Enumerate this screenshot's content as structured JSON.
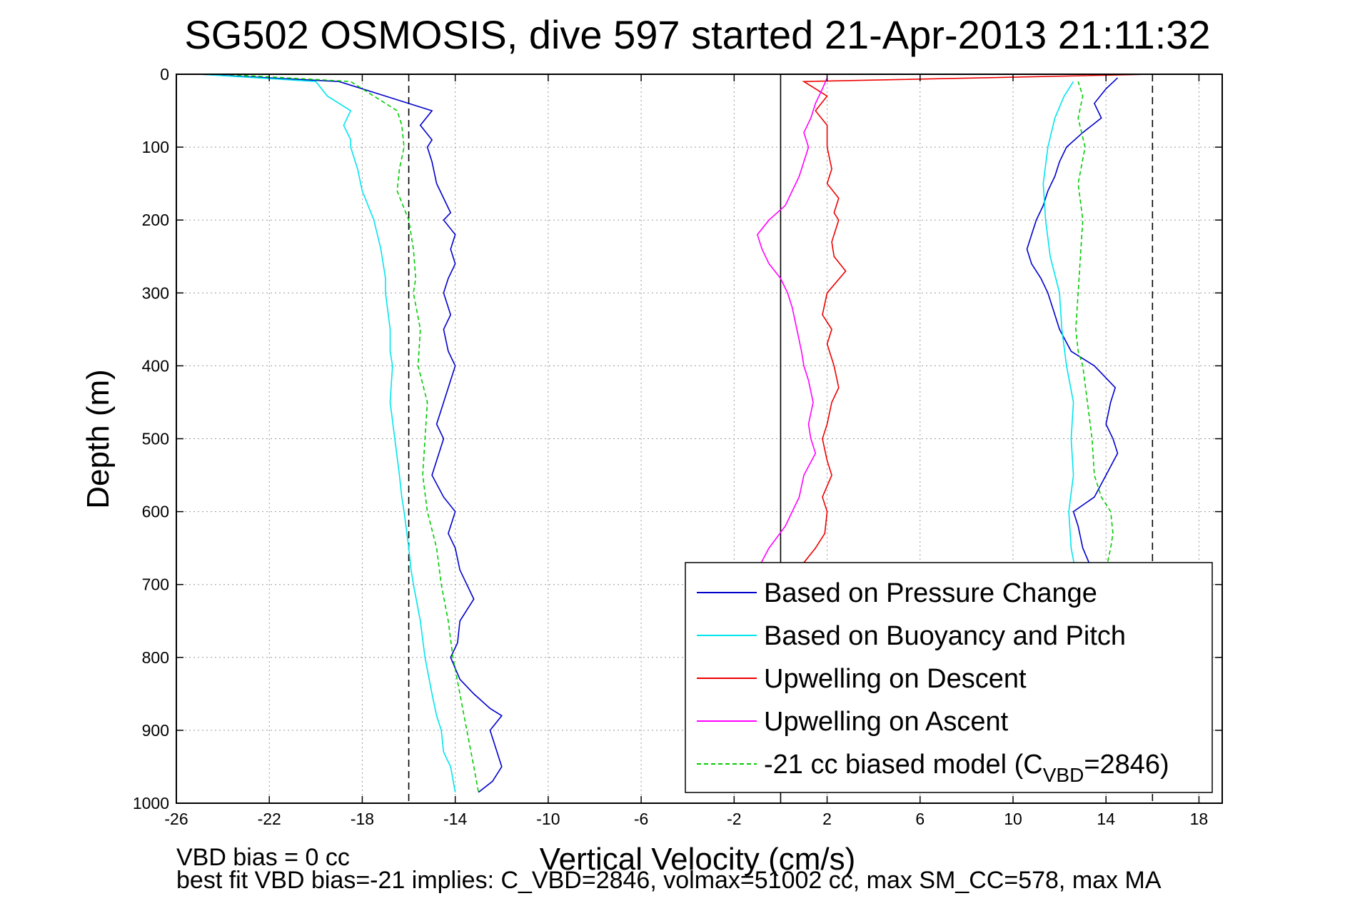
{
  "chart_data": {
    "type": "line",
    "title": "SG502 OSMOSIS, dive 597 started 21-Apr-2013 21:11:32",
    "xlabel": "Vertical Velocity (cm/s)",
    "ylabel": "Depth (m)",
    "xlim": [
      -26,
      19
    ],
    "ylim": [
      1000,
      0
    ],
    "y_reversed": true,
    "x_ticks": [
      -26,
      -22,
      -18,
      -14,
      -10,
      -6,
      -2,
      2,
      6,
      10,
      14,
      18
    ],
    "y_ticks": [
      0,
      100,
      200,
      300,
      400,
      500,
      600,
      700,
      800,
      900,
      1000
    ],
    "grid": true,
    "legend_position": "bottom-right",
    "reference_lines": [
      {
        "x": -16,
        "style": "dashed",
        "color": "#000000"
      },
      {
        "x": 16,
        "style": "dashed",
        "color": "#000000"
      },
      {
        "x": 0,
        "style": "solid",
        "color": "#000000"
      }
    ],
    "series": [
      {
        "name": "Based on Pressure Change",
        "color": "#0000cc",
        "style": "solid",
        "segments": [
          {
            "label": "descent",
            "depth": [
              0,
              10,
              30,
              50,
              70,
              90,
              100,
              120,
              150,
              170,
              190,
              200,
              220,
              240,
              260,
              280,
              300,
              330,
              350,
              380,
              400,
              420,
              450,
              480,
              500,
              530,
              550,
              580,
              600,
              630,
              650,
              680,
              700,
              720,
              750,
              780,
              800,
              830,
              850,
              870,
              880,
              900,
              920,
              950,
              970,
              985
            ],
            "value": [
              -25,
              -19,
              -17,
              -15,
              -15.5,
              -15,
              -15.2,
              -15,
              -14.8,
              -14.5,
              -14.2,
              -14.5,
              -14,
              -14.2,
              -14,
              -14.3,
              -14.5,
              -14.2,
              -14.5,
              -14.3,
              -14,
              -14.2,
              -14.5,
              -14.8,
              -14.5,
              -14.8,
              -15,
              -14.5,
              -14,
              -14.3,
              -14,
              -13.8,
              -13.5,
              -13.2,
              -13.8,
              -13.9,
              -14.2,
              -13.8,
              -13.2,
              -12.5,
              -12,
              -12.5,
              -12.3,
              -12,
              -12.4,
              -13
            ]
          },
          {
            "label": "ascent",
            "depth": [
              985,
              970,
              950,
              920,
              900,
              880,
              850,
              800,
              760,
              720,
              680,
              650,
              620,
              600,
              580,
              550,
              520,
              500,
              480,
              450,
              430,
              410,
              400,
              380,
              350,
              330,
              300,
              280,
              260,
              240,
              220,
              200,
              180,
              160,
              140,
              120,
              100,
              80,
              60,
              40,
              20,
              5
            ],
            "value": [
              12,
              12.5,
              12.6,
              12.8,
              13,
              13.1,
              13.2,
              13.5,
              13.6,
              13.7,
              13.4,
              13,
              12.8,
              12.6,
              13.5,
              14,
              14.5,
              14.3,
              14,
              14.2,
              14.4,
              13.8,
              13.5,
              12.5,
              12,
              11.8,
              11.5,
              11.2,
              10.8,
              10.6,
              10.8,
              11,
              11.3,
              11.5,
              11.8,
              12,
              12.3,
              13,
              13.8,
              13.5,
              14,
              14.5
            ]
          }
        ]
      },
      {
        "name": "Based on Buoyancy and Pitch",
        "color": "#00e5ee",
        "style": "solid",
        "segments": [
          {
            "label": "descent",
            "depth": [
              0,
              10,
              30,
              50,
              70,
              90,
              100,
              130,
              160,
              200,
              240,
              280,
              300,
              350,
              380,
              400,
              450,
              500,
              550,
              580,
              600,
              650,
              680,
              700,
              750,
              800,
              850,
              880,
              900,
              930,
              950,
              985
            ],
            "value": [
              -25,
              -20,
              -19.5,
              -18.5,
              -18.8,
              -18.5,
              -18.5,
              -18.2,
              -18,
              -17.5,
              -17.2,
              -17,
              -17,
              -16.8,
              -16.8,
              -16.7,
              -16.8,
              -16.6,
              -16.4,
              -16.3,
              -16.2,
              -16,
              -15.9,
              -15.8,
              -15.5,
              -15.3,
              -15,
              -14.8,
              -14.6,
              -14.5,
              -14.2,
              -14
            ]
          },
          {
            "label": "ascent",
            "depth": [
              985,
              950,
              920,
              900,
              880,
              850,
              800,
              750,
              700,
              650,
              600,
              550,
              500,
              450,
              400,
              350,
              300,
              250,
              200,
              150,
              100,
              60,
              30,
              10
            ],
            "value": [
              12.5,
              12.8,
              12.9,
              13,
              13.1,
              13.1,
              13,
              12.9,
              12.8,
              12.5,
              12.4,
              12.6,
              12.5,
              12.6,
              12.3,
              12.1,
              12,
              11.6,
              11.4,
              11.3,
              11.5,
              11.8,
              12.2,
              12.6
            ]
          }
        ]
      },
      {
        "name": "Upwelling on Descent",
        "color": "#ee0000",
        "style": "solid",
        "segments": [
          {
            "label": "profile",
            "depth": [
              0,
              10,
              30,
              50,
              70,
              100,
              130,
              150,
              170,
              190,
              200,
              230,
              250,
              270,
              300,
              330,
              350,
              370,
              400,
              430,
              450,
              480,
              500,
              530,
              550,
              580,
              600,
              630,
              650,
              670,
              700,
              750,
              800,
              850,
              900,
              950,
              985
            ],
            "value": [
              16,
              1,
              2,
              1.5,
              2,
              2,
              2.2,
              2,
              2.5,
              2.3,
              2.5,
              2.2,
              2.3,
              2.8,
              2,
              1.8,
              2.2,
              2,
              2.3,
              2.5,
              2.2,
              2,
              1.8,
              2,
              2.2,
              1.8,
              2,
              1.9,
              1.5,
              1,
              2,
              2.1,
              2.2,
              2.1,
              2.3,
              2.2,
              2
            ]
          }
        ]
      },
      {
        "name": "Upwelling on Ascent",
        "color": "#ff00ff",
        "style": "solid",
        "segments": [
          {
            "label": "profile",
            "depth": [
              5,
              20,
              40,
              60,
              80,
              100,
              120,
              140,
              160,
              180,
              200,
              220,
              240,
              260,
              280,
              300,
              320,
              350,
              380,
              400,
              420,
              450,
              480,
              500,
              520,
              550,
              580,
              600,
              620,
              650,
              680
            ],
            "value": [
              2,
              1.8,
              1.5,
              1.3,
              1,
              1.2,
              1,
              0.8,
              0.5,
              0.2,
              -0.5,
              -1,
              -0.8,
              -0.5,
              0,
              0.3,
              0.5,
              0.7,
              0.9,
              1,
              1.2,
              1.4,
              1.2,
              1.3,
              1.5,
              1,
              0.8,
              0.5,
              0.2,
              -0.5,
              -1
            ]
          }
        ]
      },
      {
        "name": "-21 cc biased model (C_VBD=2846)",
        "color": "#00cc00",
        "style": "dashed",
        "segments": [
          {
            "label": "descent",
            "depth": [
              0,
              10,
              30,
              50,
              70,
              100,
              130,
              160,
              200,
              240,
              280,
              300,
              350,
              400,
              450,
              500,
              550,
              600,
              650,
              700,
              750,
              800,
              850,
              900,
              950,
              985
            ],
            "value": [
              -24,
              -18.5,
              -17.5,
              -16.5,
              -16.3,
              -16.2,
              -16.4,
              -16.5,
              -16,
              -15.8,
              -15.7,
              -15.8,
              -15.5,
              -15.6,
              -15.2,
              -15.3,
              -15.4,
              -15.2,
              -14.8,
              -14.6,
              -14.3,
              -14.1,
              -13.8,
              -13.5,
              -13.2,
              -13
            ]
          },
          {
            "label": "ascent",
            "depth": [
              985,
              950,
              900,
              850,
              800,
              750,
              700,
              680,
              650,
              630,
              600,
              580,
              550,
              500,
              450,
              400,
              380,
              350,
              300,
              250,
              200,
              150,
              100,
              60,
              30,
              10
            ],
            "value": [
              12.5,
              13,
              13.3,
              13.5,
              13.7,
              14,
              14.1,
              14,
              14.2,
              14.3,
              14.2,
              13.8,
              13.5,
              13.4,
              13.2,
              13,
              12.8,
              12.7,
              12.8,
              12.9,
              13,
              12.8,
              13.1,
              12.8,
              13,
              12.8
            ]
          }
        ]
      }
    ],
    "legend_entries": [
      {
        "label": "Based on Pressure Change",
        "color": "#0000cc",
        "dashed": false
      },
      {
        "label": "Based on Buoyancy and Pitch",
        "color": "#00e5ee",
        "dashed": false
      },
      {
        "label": "Upwelling on Descent",
        "color": "#ee0000",
        "dashed": false
      },
      {
        "label": "Upwelling on Ascent",
        "color": "#ff00ff",
        "dashed": false
      },
      {
        "label": "-21 cc biased model (C",
        "sub": "VBD",
        "tail": "=2846)",
        "color": "#00cc00",
        "dashed": true
      }
    ],
    "annotations": {
      "line1": "VBD bias = 0 cc",
      "line2": "best fit VBD bias=-21 implies: C_VBD=2846, volmax=51002 cc, max SM_CC=578, max MA"
    }
  }
}
